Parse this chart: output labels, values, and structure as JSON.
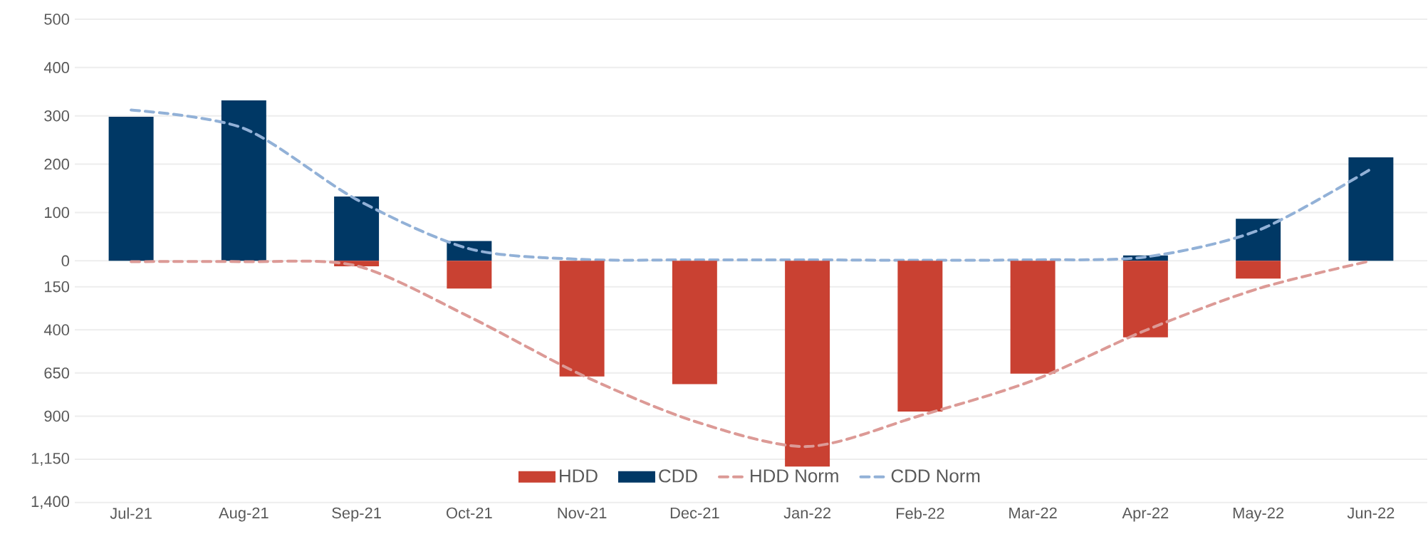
{
  "chart_data": {
    "type": "bar",
    "categories": [
      "Jul-21",
      "Aug-21",
      "Sep-21",
      "Oct-21",
      "Nov-21",
      "Dec-21",
      "Jan-22",
      "Feb-22",
      "Mar-22",
      "Apr-22",
      "May-22",
      "Jun-22"
    ],
    "series": [
      {
        "name": "HDD",
        "axis": "y2",
        "color": "#c94132",
        "values": [
          0,
          0,
          32,
          161,
          670,
          715,
          1192,
          873,
          654,
          443,
          103,
          0
        ]
      },
      {
        "name": "CDD",
        "color": "#003865",
        "values": [
          298,
          332,
          133,
          41,
          0,
          0,
          0,
          0,
          0,
          11,
          87,
          214
        ]
      },
      {
        "name": "HDD Norm",
        "type": "line",
        "axis": "y2",
        "line_style": "dashed",
        "color": "#dc9a96",
        "values": [
          5,
          5,
          29,
          324,
          662,
          930,
          1076,
          897,
          694,
          403,
          161,
          0
        ]
      },
      {
        "name": "CDD Norm",
        "type": "line",
        "line_style": "dashed",
        "color": "#92b1d7",
        "values": [
          312,
          274,
          127,
          25,
          3,
          2,
          2,
          1,
          2,
          8,
          63,
          190
        ]
      }
    ],
    "ylim": [
      -500,
      500
    ],
    "yticks": [
      0,
      100,
      200,
      300,
      400,
      500
    ],
    "y2lim": [
      1400,
      -1400
    ],
    "y2ticks": [
      150,
      400,
      650,
      900,
      {
        "value": 1150,
        "label": "1,150"
      },
      {
        "value": 1400,
        "label": "1,400"
      }
    ],
    "grid": "y",
    "legend": "bottom"
  }
}
